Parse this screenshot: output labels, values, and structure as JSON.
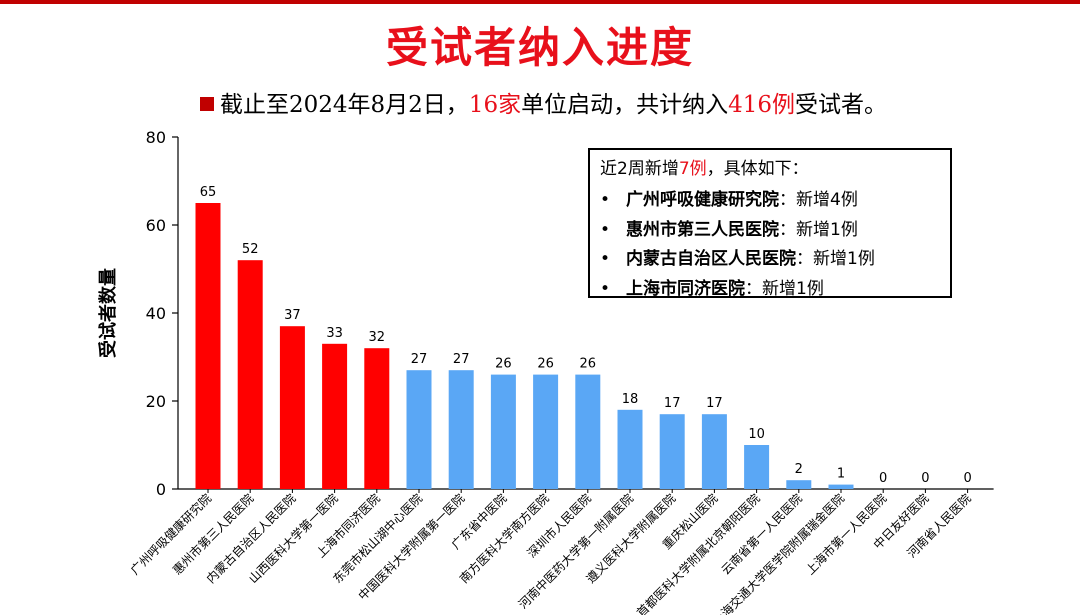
{
  "header": {
    "title": "受试者纳入进度"
  },
  "summary": {
    "prefix": "截止至2024年8月2日，",
    "sites": "16家",
    "middle": "单位启动，共计纳入",
    "total": "416例",
    "suffix": "受试者。"
  },
  "info_box": {
    "head_prefix": "近2周新增",
    "head_count": "7例",
    "head_suffix": "，具体如下：",
    "items": [
      {
        "hospital": "广州呼吸健康研究院",
        "sep": "：",
        "detail": "新增4例"
      },
      {
        "hospital": "惠州市第三人民医院",
        "sep": "：",
        "detail": "新增1例"
      },
      {
        "hospital": "内蒙古自治区人民医院",
        "sep": "：",
        "detail": "新增1例"
      },
      {
        "hospital": "上海市同济医院",
        "sep": "：",
        "detail": "新增1例"
      }
    ]
  },
  "colors": {
    "title": "#e8101b",
    "highlight": "#e8101b",
    "bar_top5": "#ff0000",
    "bar_other": "#5aa7f5",
    "axis": "#000000"
  },
  "chart_data": {
    "type": "bar",
    "ylabel": "受试者数量",
    "xlabel": "",
    "ylim": [
      0,
      80
    ],
    "yticks": [
      0,
      20,
      40,
      60,
      80
    ],
    "grid": false,
    "categories": [
      "广州呼吸健康研究院",
      "惠州市第三人民医院",
      "内蒙古自治区人民医院",
      "山西医科大学第一医院",
      "上海市同济医院",
      "东莞市松山湖中心医院",
      "中国医科大学附属第一医院",
      "广东省中医院",
      "南方医科大学南方医院",
      "深圳市人民医院",
      "河南中医药大学第一附属医院",
      "遵义医科大学附属医院",
      "重庆松山医院",
      "首都医科大学附属北京朝阳医院",
      "云南省第一人民医院",
      "上海交通大学医学院附属瑞金医院",
      "上海市第一人民医院",
      "中日友好医院",
      "河南省人民医院"
    ],
    "values": [
      65,
      52,
      37,
      33,
      32,
      27,
      27,
      26,
      26,
      26,
      18,
      17,
      17,
      10,
      2,
      1,
      0,
      0,
      0
    ],
    "highlight_count": 5
  }
}
